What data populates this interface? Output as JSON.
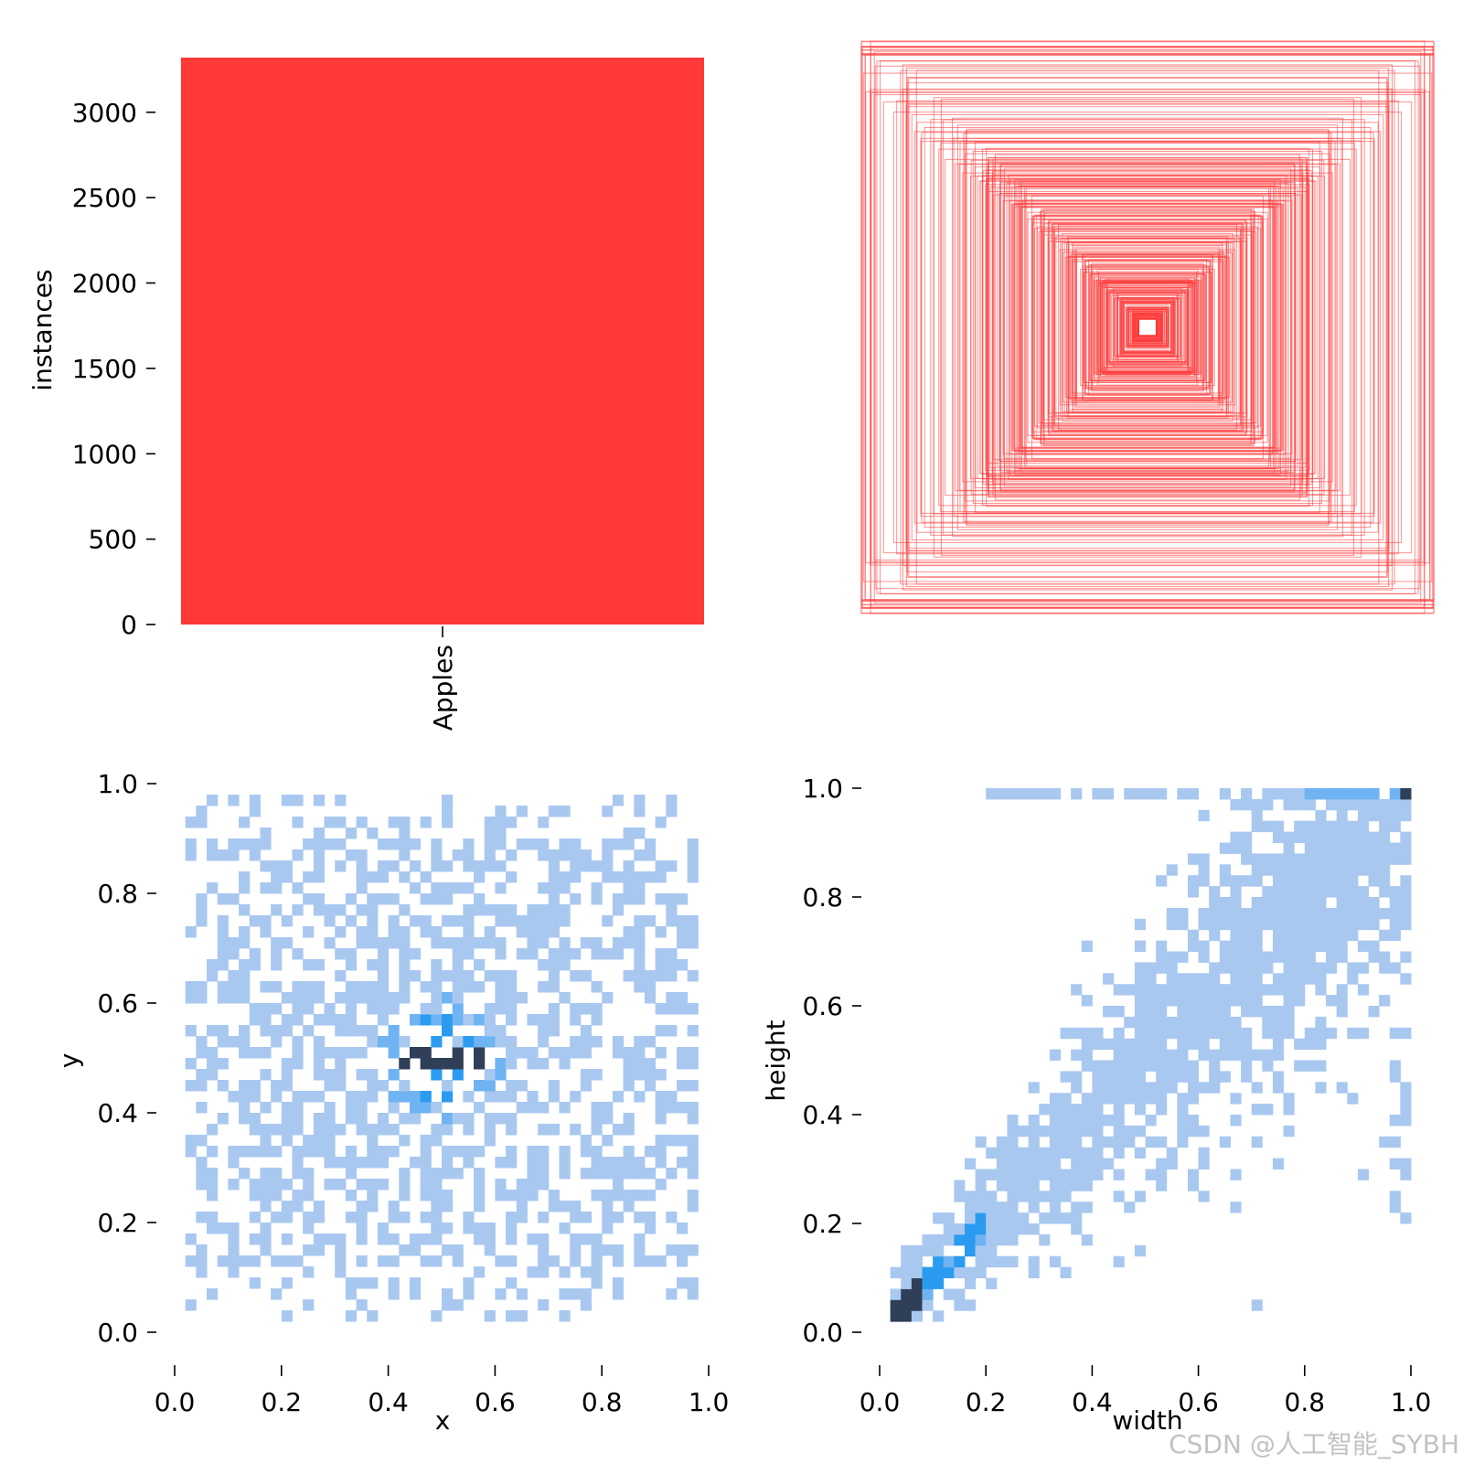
{
  "colors": {
    "bar": "#ff3838",
    "box_stroke": "#ff3838",
    "hist_light": "#a9c8f0",
    "hist_mid": "#2b9bf0",
    "hist_dark": "#2e3f57"
  },
  "watermark": "CSDN @人工智能_SYBH",
  "chart_data": [
    {
      "type": "bar",
      "categories": [
        "Apples"
      ],
      "values": [
        3320
      ],
      "xlabel": "",
      "ylabel": "instances",
      "ylim": [
        0,
        3320
      ],
      "yticks": [
        "0",
        "500",
        "1000",
        "1500",
        "2000",
        "2500",
        "3000"
      ],
      "color": "#ff3838"
    },
    {
      "type": "scatter",
      "subtype": "bounding-box overlay (boxes centered, normalized width/height)",
      "xlabel": "",
      "ylabel": "",
      "xlim": [
        0,
        1
      ],
      "ylim": [
        0,
        1
      ],
      "color": "#ff3838"
    },
    {
      "type": "heatmap",
      "subtype": "2D histogram",
      "xlabel": "x",
      "ylabel": "y",
      "xlim": [
        0,
        1
      ],
      "ylim": [
        0,
        1
      ],
      "xticks": [
        "0.0",
        "0.2",
        "0.4",
        "0.6",
        "0.8",
        "1.0"
      ],
      "yticks": [
        "0.0",
        "0.2",
        "0.4",
        "0.6",
        "0.8",
        "1.0"
      ],
      "peak": [
        0.5,
        0.5
      ]
    },
    {
      "type": "heatmap",
      "subtype": "2D histogram",
      "xlabel": "width",
      "ylabel": "height",
      "xlim": [
        0,
        1
      ],
      "ylim": [
        0,
        1
      ],
      "xticks": [
        "0.0",
        "0.2",
        "0.4",
        "0.6",
        "0.8",
        "1.0"
      ],
      "yticks": [
        "0.0",
        "0.2",
        "0.4",
        "0.6",
        "0.8",
        "1.0"
      ],
      "peaks": [
        [
          0.06,
          0.08
        ],
        [
          0.99,
          0.99
        ]
      ]
    }
  ]
}
